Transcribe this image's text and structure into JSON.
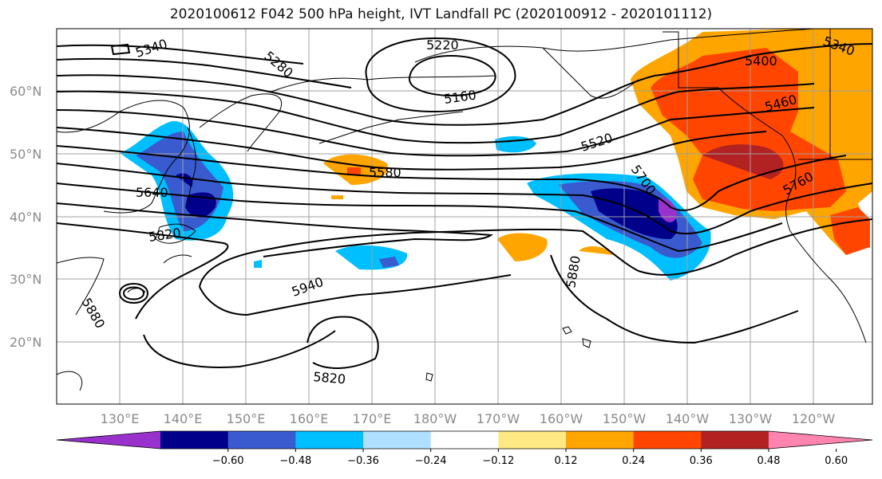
{
  "title": "2020100612 F042 500 hPa height, IVT Landfall PC (2020100912 - 2020101112)",
  "lat_labels": [
    "60°N",
    "50°N",
    "40°N",
    "30°N",
    "20°N"
  ],
  "lon_labels": [
    "130°E",
    "140°E",
    "150°E",
    "160°E",
    "170°E",
    "180°W",
    "170°W",
    "160°W",
    "150°W",
    "140°W",
    "130°W",
    "120°W"
  ],
  "contour_labels": [
    "5340",
    "5280",
    "5220",
    "5160",
    "5400",
    "5460",
    "5520",
    "5580",
    "5640",
    "5700",
    "5760",
    "5820",
    "5880",
    "5940",
    "5820",
    "5880",
    "5880",
    "5340"
  ],
  "colorbar": {
    "ticks": [
      "−0.60",
      "−0.48",
      "−0.36",
      "−0.24",
      "−0.12",
      "0.12",
      "0.24",
      "0.36",
      "0.48",
      "0.60"
    ],
    "colors": [
      "#9932cc",
      "#00008b",
      "#3a5bcf",
      "#00bfff",
      "#b0e0ff",
      "#ffffff",
      "#ffe985",
      "#ffa500",
      "#ff4500",
      "#b22222",
      "#ff85b0"
    ]
  }
}
